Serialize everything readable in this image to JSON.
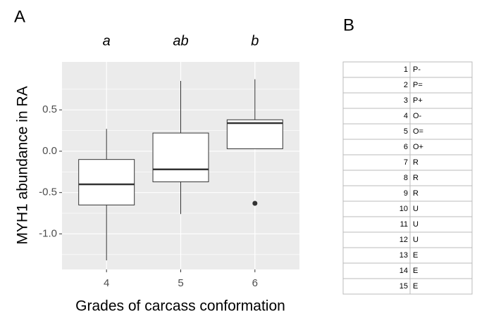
{
  "chart_data": {
    "type": "boxplot",
    "panel_label": "A",
    "y_label": "MYH1 abundance in RA",
    "x_label": "Grades of carcass conformation",
    "categories": [
      "4",
      "5",
      "6"
    ],
    "annotations": [
      "a",
      "ab",
      "b"
    ],
    "boxes": [
      {
        "whislo": -1.32,
        "q1": -0.65,
        "med": -0.4,
        "q3": -0.1,
        "whishi": 0.27,
        "fliers": []
      },
      {
        "whislo": -0.76,
        "q1": -0.37,
        "med": -0.22,
        "q3": 0.22,
        "whishi": 0.85,
        "fliers": []
      },
      {
        "whislo": 0.03,
        "q1": 0.03,
        "med": 0.34,
        "q3": 0.38,
        "whishi": 0.87,
        "fliers": [
          -0.63
        ]
      }
    ],
    "ylim": [
      -1.43,
      1.08
    ],
    "yticks": [
      {
        "value": -1,
        "label": "-1.0"
      },
      -0.5,
      {
        "value": 0,
        "label": "0.0"
      },
      0.5
    ],
    "yticks_minor": [
      -1.25,
      -0.75,
      -0.25,
      0.25,
      0.75
    ],
    "grid": true,
    "background": "#ebebeb",
    "box_color": "#ffffff",
    "line_color": "#333333"
  },
  "table": {
    "title": "B",
    "rows": [
      [
        "1",
        "P-"
      ],
      [
        "2",
        "P="
      ],
      [
        "3",
        "P+"
      ],
      [
        "4",
        "O-"
      ],
      [
        "5",
        "O="
      ],
      [
        "6",
        "O+"
      ],
      [
        "7",
        "R"
      ],
      [
        "8",
        "R"
      ],
      [
        "9",
        "R"
      ],
      [
        "10",
        "U"
      ],
      [
        "11",
        "U"
      ],
      [
        "12",
        "U"
      ],
      [
        "13",
        "E"
      ],
      [
        "14",
        "E"
      ],
      [
        "15",
        "E"
      ]
    ]
  }
}
